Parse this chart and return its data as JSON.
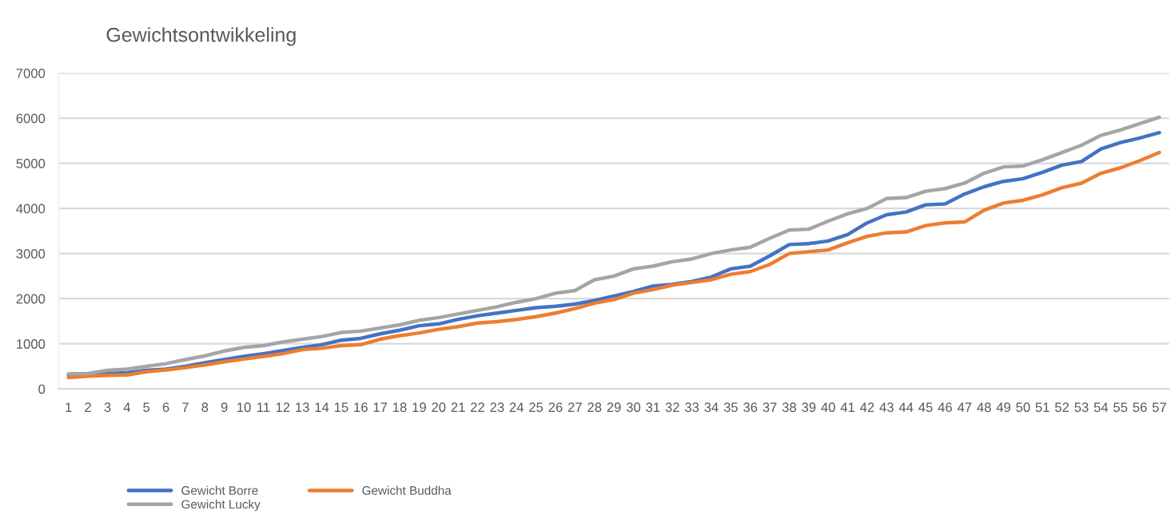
{
  "chart_data": {
    "type": "line",
    "title": "Gewichtsontwikkeling",
    "categories": [
      "1",
      "2",
      "3",
      "4",
      "5",
      "6",
      "7",
      "8",
      "9",
      "10",
      "11",
      "12",
      "13",
      "14",
      "15",
      "16",
      "17",
      "18",
      "19",
      "20",
      "21",
      "22",
      "23",
      "24",
      "25",
      "26",
      "27",
      "28",
      "29",
      "30",
      "31",
      "32",
      "33",
      "34",
      "35",
      "36",
      "37",
      "38",
      "39",
      "40",
      "41",
      "42",
      "43",
      "44",
      "45",
      "46",
      "47",
      "48",
      "49",
      "50",
      "51",
      "52",
      "53",
      "54",
      "55",
      "56",
      "57"
    ],
    "series": [
      {
        "name": "Gewicht Borre",
        "color": "#4472c4",
        "values": [
          300,
          310,
          340,
          360,
          410,
          440,
          500,
          580,
          650,
          720,
          780,
          850,
          920,
          980,
          1080,
          1120,
          1220,
          1300,
          1400,
          1440,
          1540,
          1620,
          1680,
          1740,
          1800,
          1830,
          1880,
          1960,
          2060,
          2160,
          2280,
          2320,
          2380,
          2480,
          2660,
          2720,
          2950,
          3200,
          3220,
          3280,
          3420,
          3680,
          3860,
          3920,
          4080,
          4100,
          4320,
          4480,
          4600,
          4660,
          4800,
          4960,
          5040,
          5320,
          5460,
          5560,
          5680
        ]
      },
      {
        "name": "Gewicht Buddha",
        "color": "#ed7d31",
        "values": [
          250,
          280,
          300,
          310,
          380,
          420,
          470,
          530,
          600,
          660,
          720,
          780,
          870,
          900,
          960,
          980,
          1100,
          1180,
          1240,
          1320,
          1380,
          1460,
          1490,
          1540,
          1600,
          1680,
          1780,
          1900,
          1980,
          2120,
          2200,
          2300,
          2360,
          2420,
          2540,
          2600,
          2760,
          3000,
          3040,
          3080,
          3240,
          3380,
          3460,
          3480,
          3620,
          3680,
          3700,
          3960,
          4120,
          4180,
          4300,
          4460,
          4560,
          4780,
          4900,
          5060,
          5240
        ]
      },
      {
        "name": "Gewicht Lucky",
        "color": "#a5a5a5",
        "values": [
          330,
          340,
          410,
          440,
          500,
          560,
          650,
          730,
          840,
          920,
          960,
          1040,
          1100,
          1160,
          1250,
          1280,
          1350,
          1420,
          1520,
          1580,
          1660,
          1740,
          1820,
          1920,
          2000,
          2120,
          2180,
          2420,
          2500,
          2660,
          2720,
          2820,
          2880,
          3000,
          3080,
          3140,
          3340,
          3520,
          3540,
          3720,
          3880,
          4000,
          4220,
          4240,
          4380,
          4440,
          4560,
          4780,
          4920,
          4940,
          5080,
          5240,
          5400,
          5620,
          5740,
          5880,
          6020
        ]
      }
    ],
    "ylim": [
      0,
      7000
    ],
    "yticks": [
      0,
      1000,
      2000,
      3000,
      4000,
      5000,
      6000,
      7000
    ],
    "grid": "y",
    "legend": "bottom left",
    "marker": "none",
    "line_style": "solid"
  }
}
